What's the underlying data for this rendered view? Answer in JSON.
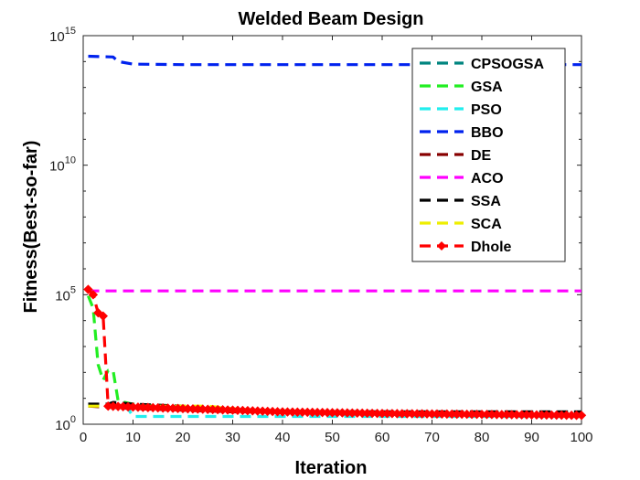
{
  "chart_data": {
    "type": "line",
    "title": "Welded Beam Design",
    "xlabel": "Iteration",
    "ylabel": "Fitness(Best-so-far)",
    "xlim": [
      0,
      100
    ],
    "ylim": [
      1,
      1000000000000000.0
    ],
    "yscale": "log",
    "xticks": [
      "0",
      "10",
      "20",
      "30",
      "40",
      "50",
      "60",
      "70",
      "80",
      "90",
      "100"
    ],
    "yticks": [
      {
        "base": "10",
        "exp": "0"
      },
      {
        "base": "10",
        "exp": "5"
      },
      {
        "base": "10",
        "exp": "10"
      },
      {
        "base": "10",
        "exp": "15"
      }
    ],
    "legend_position": "top-right",
    "series": [
      {
        "name": "CPSOGSA",
        "color": "#00857f",
        "dash": "dash",
        "points": [
          [
            1,
            6
          ],
          [
            10,
            5
          ],
          [
            30,
            3.2
          ],
          [
            60,
            3
          ],
          [
            100,
            3
          ]
        ]
      },
      {
        "name": "GSA",
        "color": "#22ee22",
        "dash": "dash",
        "points": [
          [
            1,
            90000.0
          ],
          [
            2,
            30000.0
          ],
          [
            3,
            200
          ],
          [
            4,
            50
          ],
          [
            5,
            120
          ],
          [
            6,
            120
          ],
          [
            7,
            8
          ],
          [
            10,
            6
          ],
          [
            20,
            4
          ],
          [
            50,
            3
          ],
          [
            100,
            2
          ]
        ]
      },
      {
        "name": "PSO",
        "color": "#22eeee",
        "dash": "dash",
        "points": [
          [
            1,
            6
          ],
          [
            9,
            4
          ],
          [
            10,
            2
          ],
          [
            30,
            2
          ],
          [
            40,
            2
          ],
          [
            100,
            2
          ]
        ]
      },
      {
        "name": "BBO",
        "color": "#0022ee",
        "dash": "dash",
        "points": [
          [
            1,
            160000000000000.0
          ],
          [
            6,
            150000000000000.0
          ],
          [
            7,
            100000000000000.0
          ],
          [
            10,
            80000000000000.0
          ],
          [
            20,
            76000000000000.0
          ],
          [
            100,
            76000000000000.0
          ]
        ]
      },
      {
        "name": "DE",
        "color": "#880000",
        "dash": "dash",
        "points": [
          [
            1,
            5
          ],
          [
            10,
            4
          ],
          [
            30,
            3
          ],
          [
            60,
            3
          ],
          [
            100,
            2.5
          ]
        ]
      },
      {
        "name": "ACO",
        "color": "#ff00ff",
        "dash": "dash",
        "points": [
          [
            1,
            140000.0
          ],
          [
            100,
            140000.0
          ]
        ]
      },
      {
        "name": "SSA",
        "color": "#000000",
        "dash": "dash",
        "points": [
          [
            1,
            6
          ],
          [
            5,
            6
          ],
          [
            6,
            7
          ],
          [
            10,
            6
          ],
          [
            20,
            5
          ],
          [
            40,
            3
          ],
          [
            100,
            3
          ]
        ]
      },
      {
        "name": "SCA",
        "color": "#eeee00",
        "dash": "dash",
        "points": [
          [
            1,
            5
          ],
          [
            10,
            5
          ],
          [
            25,
            5
          ],
          [
            30,
            4
          ],
          [
            40,
            3
          ],
          [
            100,
            2
          ]
        ]
      },
      {
        "name": "Dhole",
        "color": "#ff0000",
        "dash": "dash",
        "marker": "diamond",
        "points": [
          [
            1,
            160000.0
          ],
          [
            2,
            100000.0
          ],
          [
            3,
            20000.0
          ],
          [
            4,
            15000.0
          ],
          [
            5,
            5
          ],
          [
            10,
            4.6
          ],
          [
            20,
            4
          ],
          [
            30,
            3.5
          ],
          [
            40,
            3
          ],
          [
            50,
            2.8
          ],
          [
            60,
            2.6
          ],
          [
            80,
            2.4
          ],
          [
            100,
            2.2
          ]
        ]
      }
    ]
  }
}
